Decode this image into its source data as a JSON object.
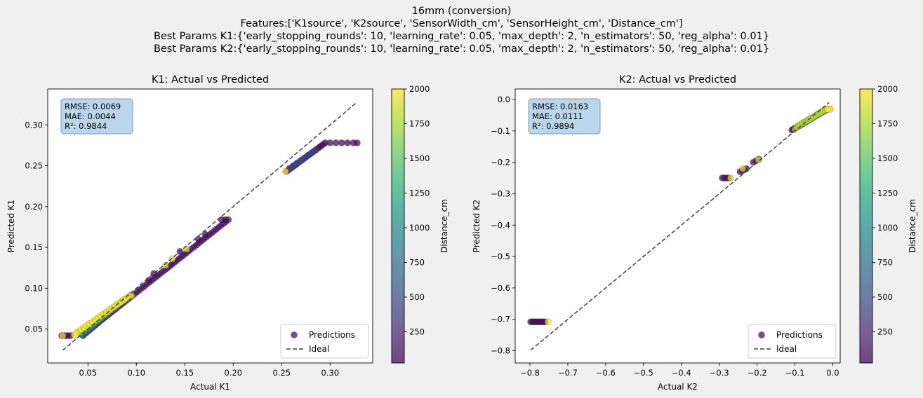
{
  "figure": {
    "title_lines": [
      "16mm (conversion)",
      "Features:['K1source', 'K2source', 'SensorWidth_cm', 'SensorHeight_cm', 'Distance_cm']",
      "Best Params K1:{'early_stopping_rounds': 10, 'learning_rate': 0.05, 'max_depth': 2, 'n_estimators': 50, 'reg_alpha': 0.01}",
      "Best Params K2:{'early_stopping_rounds': 10, 'learning_rate': 0.05, 'max_depth': 2, 'n_estimators': 50, 'reg_alpha': 0.01}"
    ],
    "colors": {
      "viridis": [
        "#440154",
        "#482878",
        "#3e4989",
        "#31688e",
        "#26828e",
        "#1f9e89",
        "#35b779",
        "#6ece58",
        "#b5de2b",
        "#fde725"
      ],
      "ideal_line": "#404040",
      "stats_box_fill": "#b9d6ea",
      "stats_box_edge": "#7f9fb5"
    }
  },
  "chart_data": [
    {
      "type": "scatter",
      "title": "K1: Actual vs Predicted",
      "xlabel": "Actual K1",
      "ylabel": "Predicted K1",
      "xlim": [
        0.0085,
        0.344
      ],
      "ylim": [
        0.0085,
        0.344
      ],
      "xticks": [
        0.05,
        0.1,
        0.15,
        0.2,
        0.25,
        0.3
      ],
      "yticks": [
        0.05,
        0.1,
        0.15,
        0.2,
        0.25,
        0.3
      ],
      "tick_labels": [
        "0.05",
        "0.10",
        "0.15",
        "0.20",
        "0.25",
        "0.30"
      ],
      "stats": [
        "RMSE: 0.0069",
        "MAE: 0.0044",
        "R²: 0.9844"
      ],
      "legend": {
        "position": "lower-right",
        "entries": [
          "Predictions",
          "Ideal"
        ]
      },
      "colorbar": {
        "label": "Distance_cm",
        "range": [
          25,
          2000
        ],
        "ticks": [
          "250",
          "500",
          "750",
          "1000",
          "1250",
          "1500",
          "1750",
          "2000"
        ],
        "tick_values": [
          250,
          500,
          750,
          1000,
          1250,
          1500,
          1750,
          2000
        ]
      },
      "ideal": [
        [
          0.024,
          0.024
        ],
        [
          0.328,
          0.328
        ]
      ],
      "segments": [
        {
          "x0": 0.04,
          "y0": 0.047,
          "x1": 0.09,
          "y1": 0.088,
          "n": 18,
          "d": 2000
        },
        {
          "x0": 0.041,
          "y0": 0.046,
          "x1": 0.089,
          "y1": 0.087,
          "n": 16,
          "d": 1700
        },
        {
          "x0": 0.042,
          "y0": 0.045,
          "x1": 0.088,
          "y1": 0.086,
          "n": 14,
          "d": 1400
        },
        {
          "x0": 0.043,
          "y0": 0.044,
          "x1": 0.087,
          "y1": 0.085,
          "n": 14,
          "d": 1000
        },
        {
          "x0": 0.044,
          "y0": 0.043,
          "x1": 0.086,
          "y1": 0.084,
          "n": 14,
          "d": 650
        },
        {
          "x0": 0.045,
          "y0": 0.042,
          "x1": 0.085,
          "y1": 0.083,
          "n": 14,
          "d": 300
        },
        {
          "x0": 0.045,
          "y0": 0.043,
          "x1": 0.195,
          "y1": 0.184,
          "n": 60,
          "d": 80
        },
        {
          "x0": 0.255,
          "y0": 0.243,
          "x1": 0.295,
          "y1": 0.278,
          "n": 22,
          "d": 80
        },
        {
          "x0": 0.258,
          "y0": 0.247,
          "x1": 0.285,
          "y1": 0.269,
          "n": 8,
          "d": 500
        }
      ],
      "points": [
        {
          "x": 0.023,
          "y": 0.042,
          "d": 30
        },
        {
          "x": 0.026,
          "y": 0.042,
          "d": 30
        },
        {
          "x": 0.029,
          "y": 0.042,
          "d": 30
        },
        {
          "x": 0.032,
          "y": 0.042,
          "d": 30
        },
        {
          "x": 0.024,
          "y": 0.042,
          "d": 2000
        },
        {
          "x": 0.036,
          "y": 0.043,
          "d": 2000
        },
        {
          "x": 0.038,
          "y": 0.045,
          "d": 2000
        },
        {
          "x": 0.093,
          "y": 0.091,
          "d": 1900
        },
        {
          "x": 0.095,
          "y": 0.091,
          "d": 1900
        },
        {
          "x": 0.113,
          "y": 0.11,
          "d": 80
        },
        {
          "x": 0.118,
          "y": 0.118,
          "d": 80
        },
        {
          "x": 0.13,
          "y": 0.128,
          "d": 1900
        },
        {
          "x": 0.137,
          "y": 0.136,
          "d": 1900
        },
        {
          "x": 0.152,
          "y": 0.148,
          "d": 1900
        },
        {
          "x": 0.145,
          "y": 0.145,
          "d": 80
        },
        {
          "x": 0.164,
          "y": 0.16,
          "d": 80
        },
        {
          "x": 0.171,
          "y": 0.166,
          "d": 80
        },
        {
          "x": 0.188,
          "y": 0.184,
          "d": 80
        },
        {
          "x": 0.192,
          "y": 0.184,
          "d": 80
        },
        {
          "x": 0.3,
          "y": 0.278,
          "d": 30
        },
        {
          "x": 0.306,
          "y": 0.278,
          "d": 30
        },
        {
          "x": 0.312,
          "y": 0.278,
          "d": 30
        },
        {
          "x": 0.318,
          "y": 0.278,
          "d": 30
        },
        {
          "x": 0.324,
          "y": 0.278,
          "d": 30
        },
        {
          "x": 0.328,
          "y": 0.278,
          "d": 30
        },
        {
          "x": 0.254,
          "y": 0.243,
          "d": 2000
        }
      ]
    },
    {
      "type": "scatter",
      "title": "K2: Actual vs Predicted",
      "xlabel": "Actual K2",
      "ylabel": "Predicted K2",
      "xlim": [
        -0.839,
        0.0195
      ],
      "ylim": [
        -0.839,
        0.0335
      ],
      "xticks": [
        -0.8,
        -0.7,
        -0.6,
        -0.5,
        -0.4,
        -0.3,
        -0.2,
        -0.1,
        0.0
      ],
      "yticks": [
        -0.8,
        -0.7,
        -0.6,
        -0.5,
        -0.4,
        -0.3,
        -0.2,
        -0.1,
        0.0
      ],
      "xtick_labels": [
        "−0.8",
        "−0.7",
        "−0.6",
        "−0.5",
        "−0.4",
        "−0.3",
        "−0.2",
        "−0.1",
        "0.0"
      ],
      "ytick_labels": [
        "−0.8",
        "−0.7",
        "−0.6",
        "−0.5",
        "−0.4",
        "−0.3",
        "−0.2",
        "−0.1",
        "0.0"
      ],
      "stats": [
        "RMSE: 0.0163",
        "MAE: 0.0111",
        "R²: 0.9894"
      ],
      "legend": {
        "position": "lower-right",
        "entries": [
          "Predictions",
          "Ideal"
        ]
      },
      "colorbar": {
        "label": "Distance_cm",
        "range": [
          25,
          2000
        ],
        "ticks": [
          "250",
          "500",
          "750",
          "1000",
          "1250",
          "1500",
          "1750",
          "2000"
        ],
        "tick_values": [
          250,
          500,
          750,
          1000,
          1250,
          1500,
          1750,
          2000
        ]
      },
      "ideal": [
        [
          -0.798,
          -0.798
        ],
        [
          -0.01,
          -0.01
        ]
      ],
      "segments": [
        {
          "x0": -0.108,
          "y0": -0.097,
          "x1": -0.015,
          "y1": -0.031,
          "n": 26,
          "d": 80
        },
        {
          "x0": -0.095,
          "y0": -0.087,
          "x1": -0.02,
          "y1": -0.033,
          "n": 16,
          "d": 1800
        },
        {
          "x0": -0.09,
          "y0": -0.084,
          "x1": -0.03,
          "y1": -0.04,
          "n": 10,
          "d": 1300
        },
        {
          "x0": -0.085,
          "y0": -0.082,
          "x1": -0.035,
          "y1": -0.045,
          "n": 8,
          "d": 700
        },
        {
          "x0": -0.21,
          "y0": -0.2,
          "x1": -0.195,
          "y1": -0.19,
          "n": 3,
          "d": 80
        },
        {
          "x0": -0.245,
          "y0": -0.23,
          "x1": -0.228,
          "y1": -0.22,
          "n": 4,
          "d": 80
        },
        {
          "x0": -0.292,
          "y0": -0.25,
          "x1": -0.275,
          "y1": -0.25,
          "n": 4,
          "d": 80
        },
        {
          "x0": -0.798,
          "y0": -0.708,
          "x1": -0.76,
          "y1": -0.708,
          "n": 10,
          "d": 80
        }
      ],
      "points": [
        {
          "x": -0.196,
          "y": -0.192,
          "d": 1900
        },
        {
          "x": -0.238,
          "y": -0.22,
          "d": 1900
        },
        {
          "x": -0.27,
          "y": -0.25,
          "d": 1900
        },
        {
          "x": -0.752,
          "y": -0.708,
          "d": 1950
        },
        {
          "x": -0.1,
          "y": -0.095,
          "d": 1700
        },
        {
          "x": -0.006,
          "y": -0.031,
          "d": 2000
        },
        {
          "x": -0.01,
          "y": -0.031,
          "d": 2000
        },
        {
          "x": -0.014,
          "y": -0.031,
          "d": 2000
        }
      ]
    }
  ]
}
